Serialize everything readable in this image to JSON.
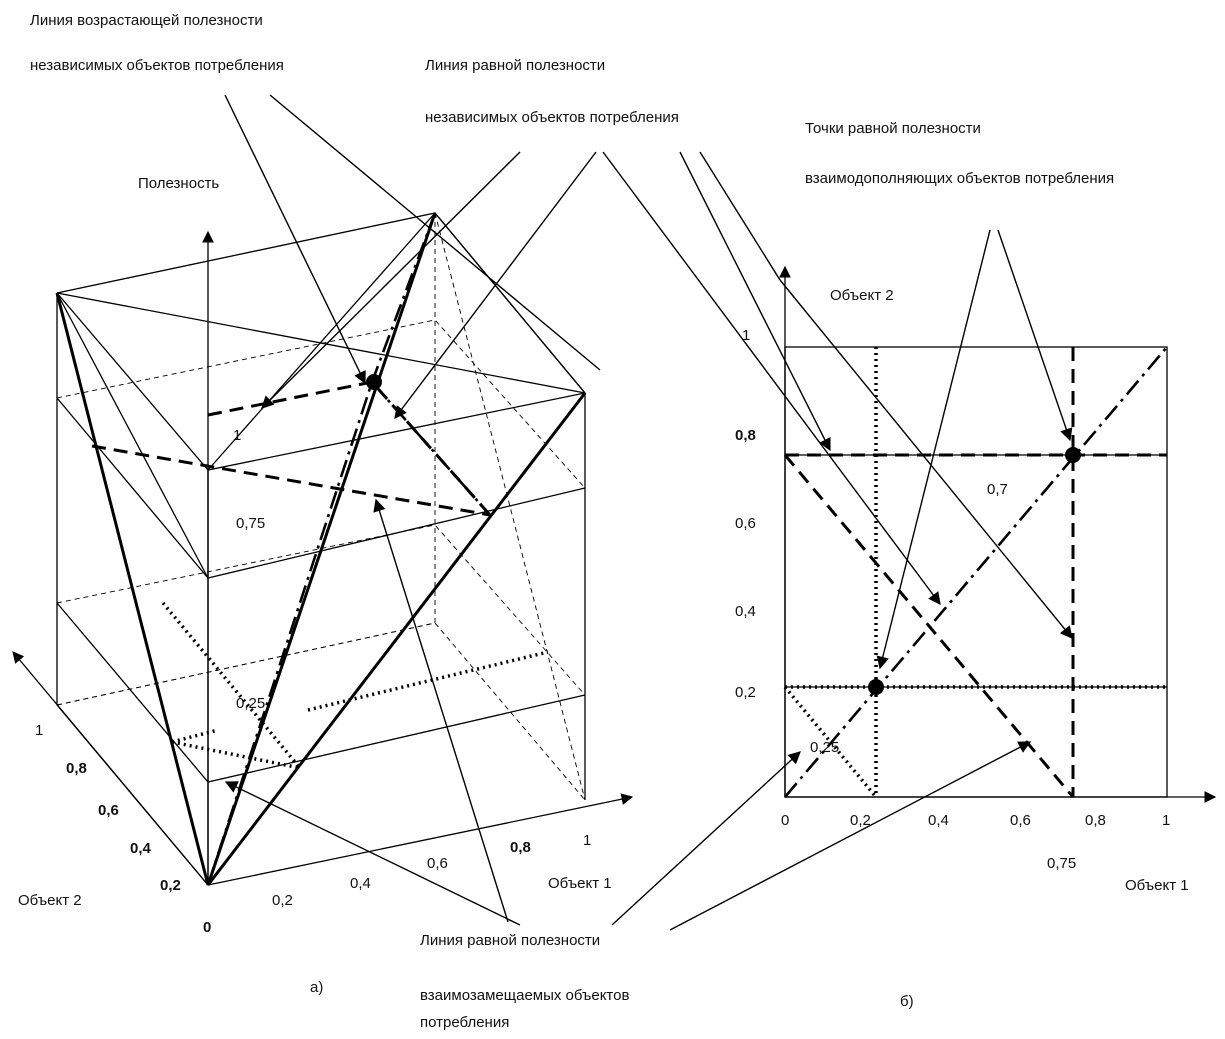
{
  "labels": {
    "rising_utility_1": "Линия возрастающей полезности",
    "rising_utility_2": "независимых объектов потребления",
    "equal_independent_1": "Линия равной полезности",
    "equal_independent_2": "независимых объектов потребления",
    "equal_points_1": "Точки равной полезности",
    "equal_points_2": "взаимодополняющих объектов потребления",
    "equal_substitutes_1": "Линия равной полезности",
    "equal_substitutes_2": "взаимозамещаемых объектов",
    "equal_substitutes_3": "потребления"
  },
  "axes": {
    "utility": "Полезность",
    "object1": "Объект 1",
    "object2": "Объект 2"
  },
  "captions": {
    "a": "а)",
    "b": "б)"
  },
  "levels_a": [
    "1",
    "0,75",
    "0,25"
  ],
  "ticks_a_object2": [
    "1",
    "0,8",
    "0,6",
    "0,4",
    "0,2"
  ],
  "ticks_a_origin": "0",
  "ticks_a_object1": [
    "0,2",
    "0,4",
    "0,6",
    "0,8",
    "1"
  ],
  "ticks_b_object2": [
    "1",
    "0,8",
    "0,6",
    "0,4",
    "0,2"
  ],
  "ticks_b_object1": [
    "0",
    "0,2",
    "0,4",
    "0,6",
    "0,8",
    "1"
  ],
  "values_b": [
    "0,7",
    "0,25",
    "0,75"
  ]
}
